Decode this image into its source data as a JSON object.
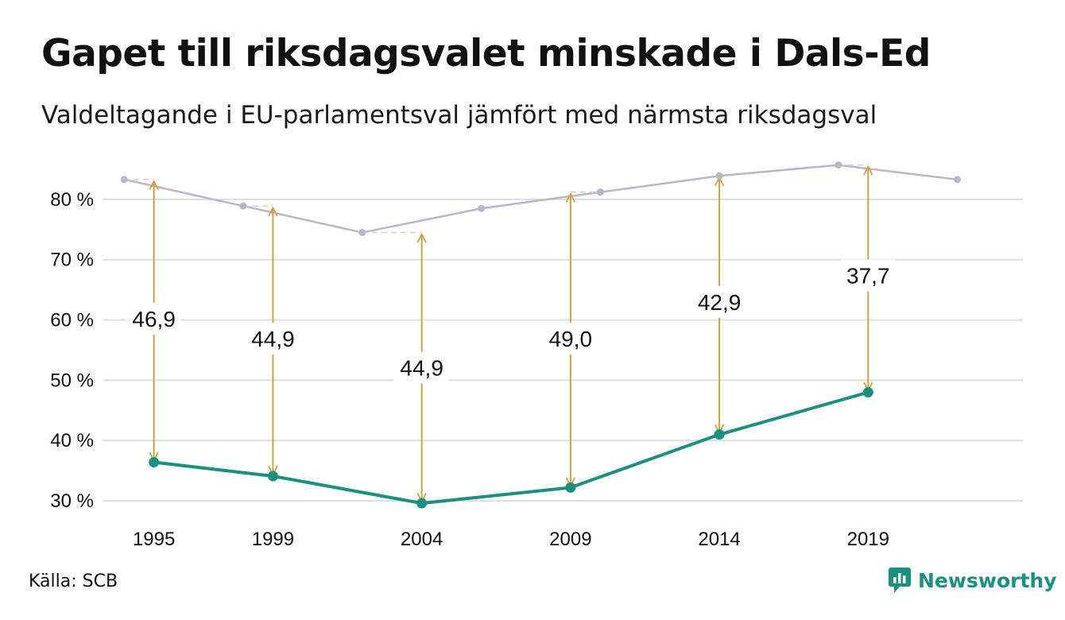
{
  "title": "Gapet till riksdagsvalet minskade i Dals-Ed",
  "subtitle": "Valdeltagande i EU-parlamentsval jämfört med närmsta riksdagsval",
  "source": "Källa: SCB",
  "brand": {
    "name": "Newsworthy",
    "icon": "newsworthy-logo-icon"
  },
  "colors": {
    "eu_line": "#1d8f80",
    "riksdag_line": "#b9b6c8",
    "gap_arrow": "#c9a24a",
    "grid": "#dddddd"
  },
  "chart_data": {
    "type": "line",
    "ylim": [
      25,
      90
    ],
    "yticks": [
      30,
      40,
      50,
      60,
      70,
      80
    ],
    "ytick_labels": [
      "30 %",
      "40 %",
      "50 %",
      "60 %",
      "70 %",
      "80 %"
    ],
    "xlim": [
      1993.3,
      2024.2
    ],
    "xtick_values": [
      1995,
      1999,
      2004,
      2009,
      2014,
      2019
    ],
    "xtick_labels": [
      "1995",
      "1999",
      "2004",
      "2009",
      "2014",
      "2019"
    ],
    "grid": true,
    "series": [
      {
        "key": "riksdag",
        "x": [
          1994,
          1998,
          2002,
          2006,
          2010,
          2014,
          2018,
          2022
        ],
        "values": [
          83.3,
          78.9,
          74.5,
          78.5,
          81.2,
          83.9,
          85.7,
          83.3
        ]
      },
      {
        "key": "eu",
        "x": [
          1995,
          1999,
          2004,
          2009,
          2014,
          2019
        ],
        "values": [
          36.4,
          34.1,
          29.6,
          32.2,
          41.0,
          48.0
        ]
      }
    ],
    "gaps": [
      {
        "x": 1995,
        "from": 36.4,
        "to": 83.3,
        "label": "46,9",
        "label_y": 60.2
      },
      {
        "x": 1999,
        "from": 34.1,
        "to": 78.9,
        "label": "44,9",
        "label_y": 56.9
      },
      {
        "x": 2004,
        "from": 29.6,
        "to": 74.5,
        "label": "44,9",
        "label_y": 52.1
      },
      {
        "x": 2009,
        "from": 32.2,
        "to": 81.2,
        "label": "49,0",
        "label_y": 56.9
      },
      {
        "x": 2014,
        "from": 41.0,
        "to": 83.9,
        "label": "42,9",
        "label_y": 63.0
      },
      {
        "x": 2019,
        "from": 48.0,
        "to": 85.7,
        "label": "37,7",
        "label_y": 67.4
      }
    ]
  }
}
